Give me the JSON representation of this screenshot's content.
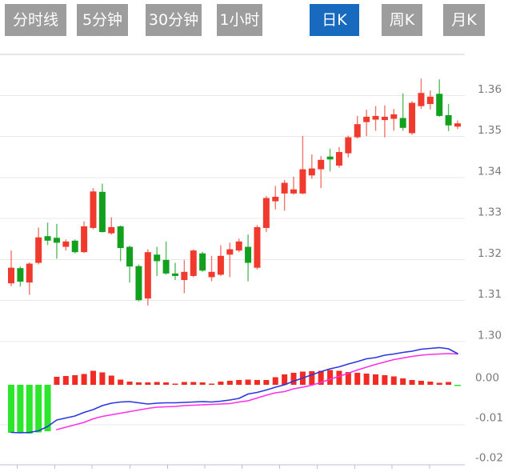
{
  "toolbar": {
    "tabs": [
      {
        "label": "分时线",
        "active": false
      },
      {
        "label": "5分钟",
        "active": false
      },
      {
        "label": "30分钟",
        "active": false
      },
      {
        "label": "1小时",
        "active": false
      },
      {
        "label": "日K",
        "active": true
      },
      {
        "label": "周K",
        "active": false
      },
      {
        "label": "月K",
        "active": false
      }
    ]
  },
  "colors": {
    "up": "#f13a2e",
    "down": "#14a01f",
    "wick_opacity": 0.7,
    "macd_up": "#f12b24",
    "macd_down": "#2ce62c",
    "dif_line": "#2b36e0",
    "dea_line": "#fb30e8",
    "tab_bg": "#9d9d9d",
    "tab_active_bg": "#176abe",
    "tab_text": "#ffffff",
    "grid": "#e8e8e8",
    "grid_top": "#cccccc",
    "axis": "#b9c2d4",
    "label_text": "#7a7a7a"
  },
  "chart_data": {
    "type": "candlestick",
    "title": "",
    "legend": "none",
    "grid": "horizontal-only",
    "price_axis": {
      "side": "right",
      "labels": [
        "1.36",
        "1.35",
        "1.34",
        "1.33",
        "1.32",
        "1.31",
        "1.30"
      ],
      "min": 1.3,
      "max": 1.37,
      "grid_step": 0.01
    },
    "candle_format": "[open, high, low, close]",
    "candles": [
      [
        1.3142,
        1.3222,
        1.3135,
        1.318
      ],
      [
        1.3179,
        1.3183,
        1.3134,
        1.3146
      ],
      [
        1.3144,
        1.3193,
        1.3114,
        1.319
      ],
      [
        1.3192,
        1.3278,
        1.3188,
        1.3254
      ],
      [
        1.3257,
        1.329,
        1.3235,
        1.3246
      ],
      [
        1.3253,
        1.3287,
        1.3202,
        1.3241
      ],
      [
        1.3231,
        1.3249,
        1.3222,
        1.3244
      ],
      [
        1.3246,
        1.3249,
        1.3215,
        1.3218
      ],
      [
        1.3218,
        1.3293,
        1.3216,
        1.3281
      ],
      [
        1.3277,
        1.3374,
        1.3274,
        1.3366
      ],
      [
        1.3365,
        1.3385,
        1.3266,
        1.3267
      ],
      [
        1.3264,
        1.3303,
        1.3261,
        1.3279
      ],
      [
        1.3281,
        1.3283,
        1.3196,
        1.3228
      ],
      [
        1.3231,
        1.3234,
        1.3144,
        1.3183
      ],
      [
        1.3184,
        1.3188,
        1.3098,
        1.3101
      ],
      [
        1.3105,
        1.3225,
        1.3088,
        1.3218
      ],
      [
        1.3212,
        1.3231,
        1.316,
        1.3196
      ],
      [
        1.3199,
        1.3244,
        1.3163,
        1.3166
      ],
      [
        1.3166,
        1.3192,
        1.315,
        1.316
      ],
      [
        1.315,
        1.3199,
        1.3118,
        1.317
      ],
      [
        1.316,
        1.3225,
        1.3157,
        1.3222
      ],
      [
        1.3215,
        1.3219,
        1.317,
        1.3173
      ],
      [
        1.3157,
        1.3209,
        1.3147,
        1.317
      ],
      [
        1.3163,
        1.3235,
        1.316,
        1.3209
      ],
      [
        1.3212,
        1.3241,
        1.3157,
        1.3225
      ],
      [
        1.3222,
        1.3251,
        1.3218,
        1.3244
      ],
      [
        1.3231,
        1.3261,
        1.3147,
        1.3192
      ],
      [
        1.318,
        1.3284,
        1.3176,
        1.3279
      ],
      [
        1.3277,
        1.3355,
        1.3267,
        1.335
      ],
      [
        1.3342,
        1.3379,
        1.3322,
        1.3353
      ],
      [
        1.3361,
        1.3394,
        1.3319,
        1.3387
      ],
      [
        1.3361,
        1.3402,
        1.3358,
        1.3371
      ],
      [
        1.3361,
        1.3501,
        1.3359,
        1.342
      ],
      [
        1.3405,
        1.3456,
        1.3397,
        1.3422
      ],
      [
        1.342,
        1.3452,
        1.3374,
        1.3443
      ],
      [
        1.3451,
        1.347,
        1.3415,
        1.3444
      ],
      [
        1.3429,
        1.3474,
        1.3424,
        1.3462
      ],
      [
        1.3459,
        1.3502,
        1.3449,
        1.3498
      ],
      [
        1.3498,
        1.355,
        1.3495,
        1.353
      ],
      [
        1.3535,
        1.3565,
        1.3501,
        1.3548
      ],
      [
        1.3541,
        1.3574,
        1.3514,
        1.355
      ],
      [
        1.354,
        1.3576,
        1.3498,
        1.3548
      ],
      [
        1.3543,
        1.3567,
        1.3514,
        1.3554
      ],
      [
        1.3545,
        1.3605,
        1.3514,
        1.3521
      ],
      [
        1.3508,
        1.3586,
        1.3504,
        1.3582
      ],
      [
        1.3574,
        1.3641,
        1.3567,
        1.3606
      ],
      [
        1.3579,
        1.3612,
        1.3566,
        1.3597
      ],
      [
        1.3604,
        1.3639,
        1.3548,
        1.355
      ],
      [
        1.3552,
        1.3579,
        1.3513,
        1.3527
      ],
      [
        1.3524,
        1.3539,
        1.3518,
        1.3532
      ]
    ],
    "macd": {
      "axis_labels": [
        "0.00",
        "-0.01",
        "-0.02"
      ],
      "axis_min": -0.02,
      "axis_max": 0.002,
      "histogram": [
        -0.012,
        -0.0121,
        -0.0122,
        -0.0119,
        -0.0116,
        0.002,
        0.0022,
        0.0024,
        0.0027,
        0.0035,
        0.0031,
        0.0023,
        0.0013,
        0.0008,
        0.0006,
        0.0006,
        0.0007,
        0.0006,
        0.0003,
        0.0007,
        0.0007,
        0.0006,
        0.0003,
        0.0008,
        0.001,
        0.0012,
        0.0013,
        0.0012,
        0.0012,
        0.0019,
        0.0026,
        0.003,
        0.0033,
        0.0034,
        0.0035,
        0.0037,
        0.0035,
        0.0032,
        0.003,
        0.0028,
        0.0026,
        0.0024,
        0.0021,
        0.0016,
        0.0012,
        0.001,
        0.0008,
        0.0005,
        0.0007,
        -0.0003
      ],
      "dif": [
        -0.0119,
        -0.012,
        -0.0119,
        -0.0115,
        -0.0104,
        -0.0088,
        -0.0083,
        -0.0078,
        -0.0069,
        -0.0062,
        -0.0052,
        -0.0046,
        -0.0043,
        -0.0042,
        -0.0045,
        -0.0048,
        -0.0046,
        -0.0045,
        -0.0045,
        -0.0044,
        -0.0043,
        -0.0042,
        -0.0043,
        -0.0041,
        -0.0038,
        -0.0034,
        -0.0023,
        -0.0019,
        -0.0013,
        -0.0006,
        0.0,
        0.0009,
        0.0017,
        0.0025,
        0.0033,
        0.004,
        0.0045,
        0.0052,
        0.0058,
        0.0065,
        0.0068,
        0.0074,
        0.0077,
        0.0081,
        0.0084,
        0.0089,
        0.0091,
        0.0093,
        0.009,
        0.0078
      ],
      "dea": [
        null,
        null,
        null,
        null,
        null,
        -0.0112,
        -0.0106,
        -0.01,
        -0.0094,
        -0.0085,
        -0.0079,
        -0.0075,
        -0.0071,
        -0.0067,
        -0.0063,
        -0.0059,
        -0.0056,
        -0.0055,
        -0.0054,
        -0.0052,
        -0.0051,
        -0.005,
        -0.0049,
        -0.0048,
        -0.0047,
        -0.0043,
        -0.004,
        -0.0033,
        -0.0026,
        -0.002,
        -0.0017,
        -0.001,
        -0.0006,
        -0.0001,
        0.0006,
        0.0014,
        0.0021,
        0.0029,
        0.0037,
        0.0044,
        0.0051,
        0.0057,
        0.0063,
        0.0067,
        0.0071,
        0.0074,
        0.0076,
        0.0077,
        0.0078,
        0.0077
      ]
    }
  }
}
